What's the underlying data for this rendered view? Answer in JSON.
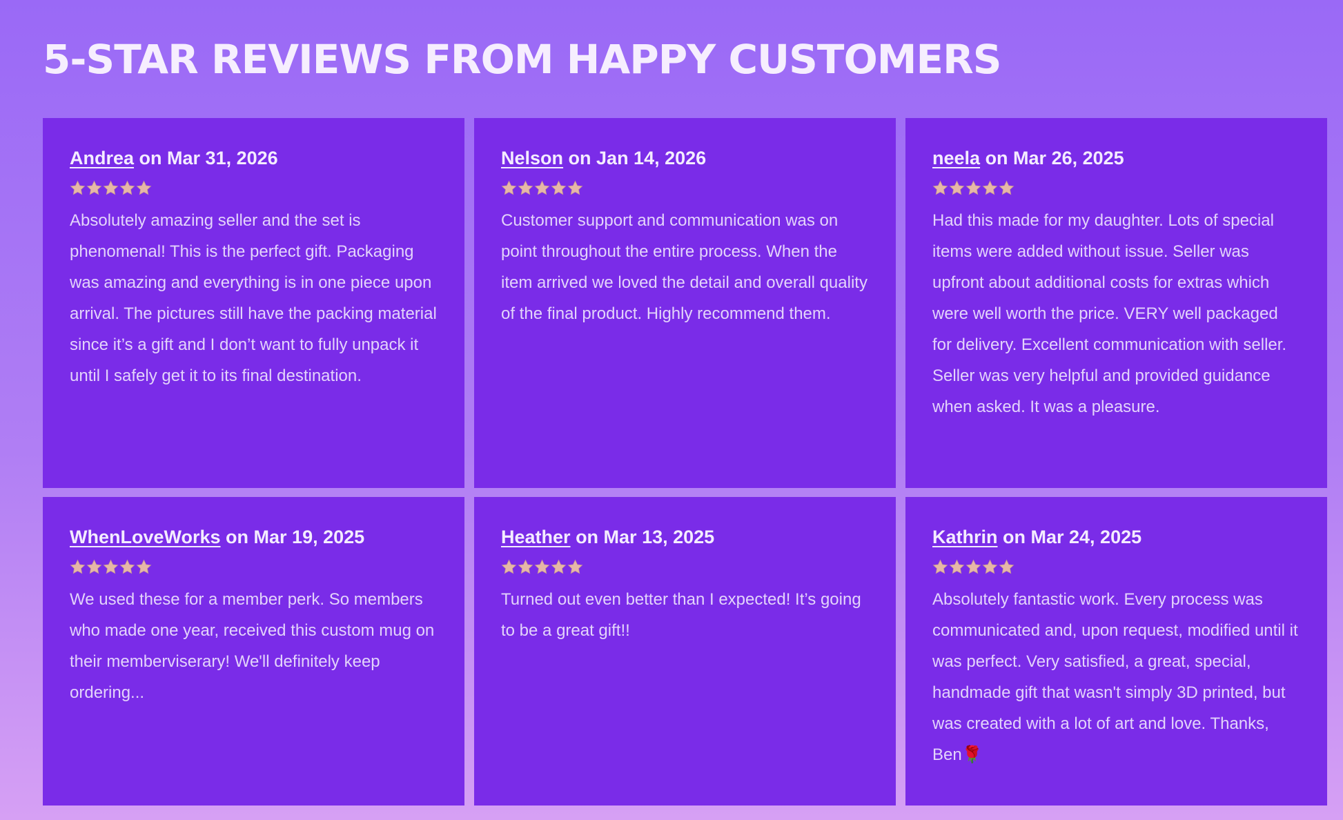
{
  "title": "5-STAR REVIEWS FROM HAPPY CUSTOMERS",
  "reviews": [
    {
      "name": "Andrea",
      "byline": "on Mar 31, 2026",
      "rating": 5,
      "text": "Absolutely amazing seller and the set is phenomenal! This is the perfect gift. Packaging was amazing and everything is in one piece upon arrival. The pictures still have the packing material since it’s a gift and I don’t want to fully unpack it until I safely get it to its final destination."
    },
    {
      "name": "Nelson",
      "byline": "on Jan 14, 2026",
      "rating": 5,
      "text": "Customer support and communication was on point throughout the entire process. When the item arrived we loved the detail and overall quality of the final product. Highly recommend them."
    },
    {
      "name": "neela",
      "byline": "on Mar 26, 2025",
      "rating": 5,
      "text": "Had this made for my daughter. Lots of special items were added without issue. Seller was upfront about additional costs for extras which were well worth the price. VERY well packaged for delivery. Excellent communication with seller. Seller was very helpful and provided guidance when asked. It was a pleasure."
    },
    {
      "name": "WhenLoveWorks",
      "byline": "on Mar 19, 2025",
      "rating": 5,
      "text": "We used these for a member perk. So members who made one year, received this custom mug on their memberviserary! We'll definitely keep ordering..."
    },
    {
      "name": "Heather",
      "byline": "on Mar 13, 2025",
      "rating": 5,
      "text": "Turned out even better than I expected! It’s going to be a great gift!!"
    },
    {
      "name": "Kathrin",
      "byline": "on Mar 24, 2025",
      "rating": 5,
      "text": "Absolutely fantastic work. Every process was communicated and, upon request, modified until it was perfect. Very satisfied, a great, special, handmade gift that wasn't simply 3D printed, but was created with a lot of art and love. Thanks, Ben🌹"
    }
  ]
}
